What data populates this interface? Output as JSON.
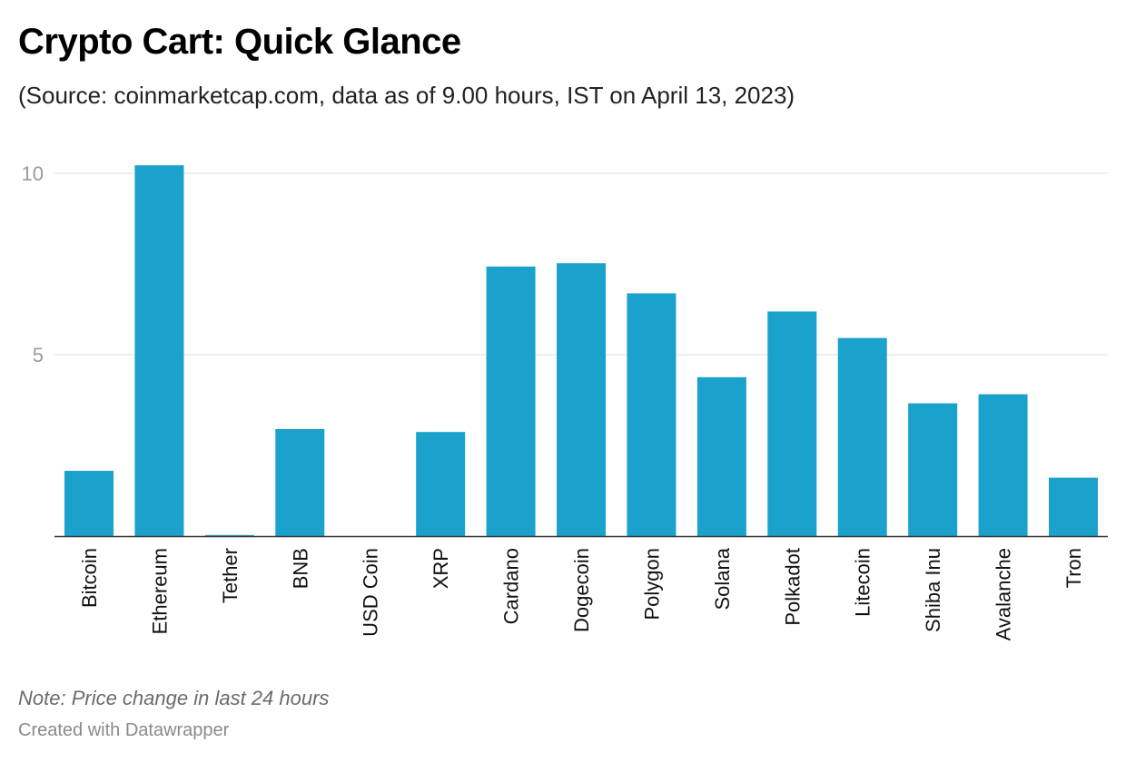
{
  "header": {
    "title": "Crypto Cart: Quick Glance",
    "subtitle": "(Source: coinmarketcap.com, data as of 9.00 hours, IST on April 13, 2023)"
  },
  "footer": {
    "note": "Note: Price change in last 24 hours",
    "credit": "Created with Datawrapper"
  },
  "colors": {
    "bar": "#1aa1cc",
    "gridline": "#dddddd",
    "axis": "#333333",
    "tick_label": "#9a9a9a"
  },
  "chart_data": {
    "type": "bar",
    "title": "Crypto Cart: Quick Glance",
    "subtitle": "(Source: coinmarketcap.com, data as of 9.00 hours, IST on April 13, 2023)",
    "xlabel": "",
    "ylabel": "",
    "categories": [
      "Bitcoin",
      "Ethereum",
      "Tether",
      "BNB",
      "USD Coin",
      "XRP",
      "Cardano",
      "Dogecoin",
      "Polygon",
      "Solana",
      "Polkadot",
      "Litecoin",
      "Shiba Inu",
      "Avalanche",
      "Tron"
    ],
    "values": [
      1.8,
      10.22,
      0.03,
      2.95,
      0.0,
      2.87,
      7.43,
      7.52,
      6.69,
      4.38,
      6.19,
      5.46,
      3.66,
      3.91,
      1.61
    ],
    "ylim": [
      0,
      10.5
    ],
    "yticks": [
      "5",
      "10"
    ],
    "grid": true,
    "legend": "none"
  }
}
